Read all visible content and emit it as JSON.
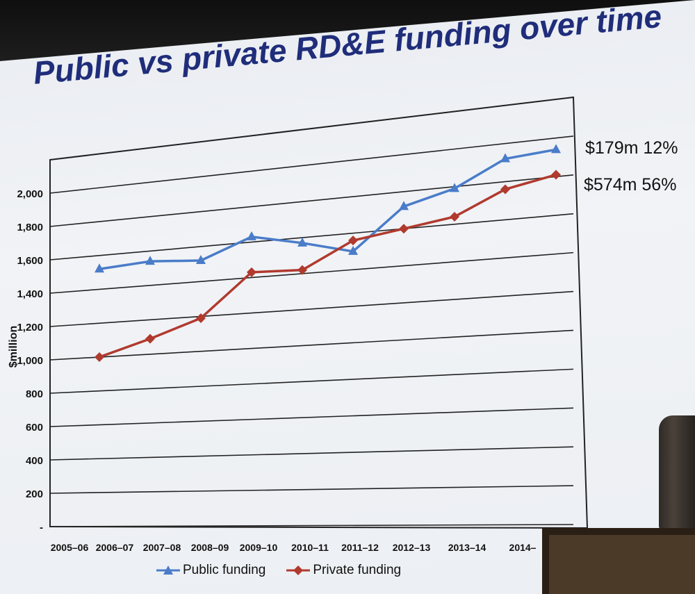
{
  "title": "Public vs private RD&E funding over time",
  "chart_data": {
    "type": "line",
    "title": "Public vs private RD&E funding over time",
    "xlabel": "",
    "ylabel": "$million",
    "categories": [
      "2005–06",
      "2006–07",
      "2007–08",
      "2008–09",
      "2009–10",
      "2010–11",
      "2011–12",
      "2012–13",
      "2013–14",
      "2014–"
    ],
    "y_tick_labels": [
      "-",
      "200",
      "400",
      "600",
      "800",
      "1,000",
      "1,200",
      "1,400",
      "1,600",
      "1,800",
      "2,000"
    ],
    "ylim": [
      0,
      2000
    ],
    "grid": true,
    "legend_position": "bottom",
    "series": [
      {
        "name": "Public funding",
        "color": "#4a7cc9",
        "marker": "triangle",
        "values": [
          1520,
          1540,
          1520,
          1630,
          1570,
          1500,
          1720,
          1790,
          1920,
          1940
        ],
        "end_label": "$179m 12%"
      },
      {
        "name": "Private funding",
        "color": "#b03a2e",
        "marker": "diamond",
        "values": [
          1000,
          1090,
          1190,
          1430,
          1420,
          1560,
          1600,
          1640,
          1760,
          1810
        ],
        "end_label": "$574m 56%"
      }
    ]
  }
}
